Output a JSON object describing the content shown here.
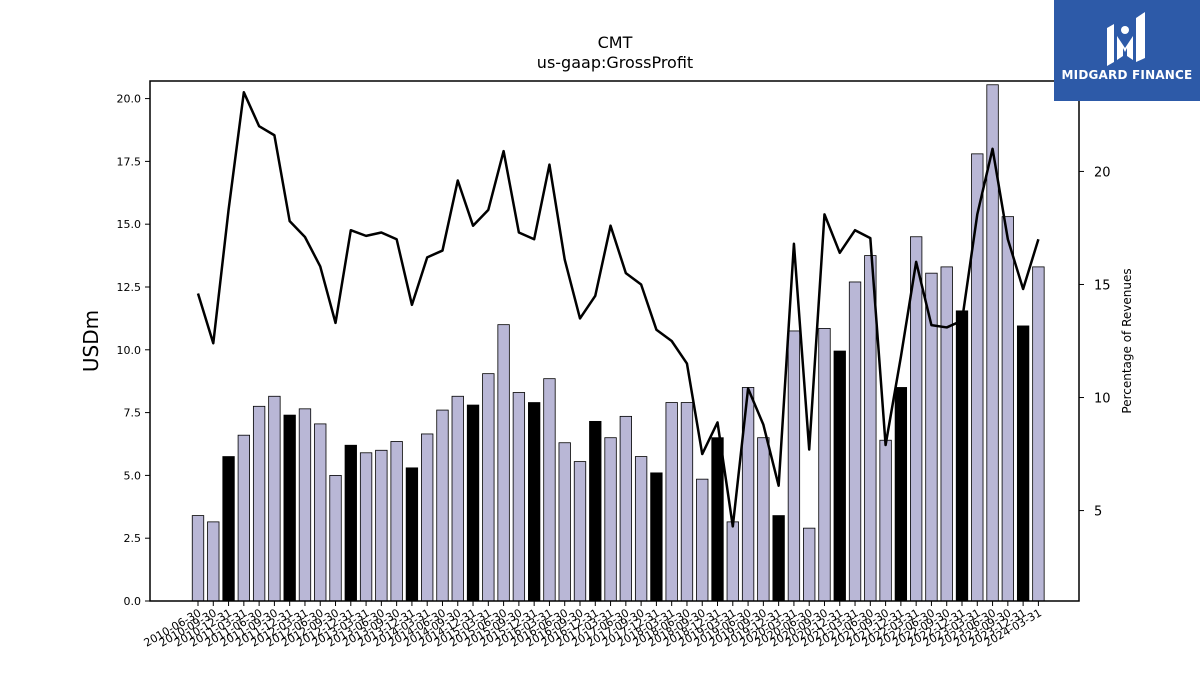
{
  "logo": {
    "text": "MIDGARD FINANCE"
  },
  "chart_data": {
    "type": "bar",
    "title": "CMT",
    "subtitle": "us-gaap:GrossProfit",
    "ylabel": "USDm",
    "y2label": "Percentage of Revenues",
    "ylim": [
      0,
      20.7
    ],
    "y2lim": [
      1,
      24
    ],
    "yticks": [
      "0.0",
      "2.5",
      "5.0",
      "7.5",
      "10.0",
      "12.5",
      "15.0",
      "17.5",
      "20.0"
    ],
    "y2ticks": [
      "5",
      "10",
      "15",
      "20"
    ],
    "categories": [
      "2010-06-30",
      "2010-09-30",
      "2010-12-31",
      "2011-03-31",
      "2011-06-30",
      "2011-09-30",
      "2011-12-31",
      "2012-03-31",
      "2012-06-30",
      "2012-09-30",
      "2012-12-31",
      "2013-03-31",
      "2013-06-30",
      "2013-09-30",
      "2013-12-31",
      "2014-03-31",
      "2014-06-30",
      "2014-09-30",
      "2014-12-31",
      "2015-03-31",
      "2015-06-30",
      "2015-09-30",
      "2015-12-31",
      "2016-03-31",
      "2016-06-30",
      "2016-09-30",
      "2016-12-31",
      "2017-03-31",
      "2017-06-30",
      "2017-09-30",
      "2017-12-31",
      "2018-03-31",
      "2018-06-30",
      "2018-09-30",
      "2018-12-31",
      "2019-03-31",
      "2019-06-30",
      "2019-09-30",
      "2019-12-31",
      "2020-03-31",
      "2020-06-30",
      "2020-09-30",
      "2020-12-31",
      "2021-03-31",
      "2021-06-30",
      "2021-09-30",
      "2021-12-31",
      "2022-03-31",
      "2022-06-30",
      "2022-09-30",
      "2022-12-31",
      "2023-03-31",
      "2023-06-30",
      "2023-09-30",
      "2023-12-31",
      "2024-03-31"
    ],
    "series": [
      {
        "type": "bar",
        "values": [
          3.4,
          3.15,
          5.75,
          6.6,
          7.75,
          8.15,
          7.4,
          7.65,
          7.05,
          5.0,
          6.2,
          5.9,
          6.0,
          6.35,
          5.3,
          6.65,
          7.6,
          8.15,
          7.8,
          9.05,
          11.0,
          8.3,
          7.9,
          8.85,
          6.3,
          5.55,
          7.15,
          6.5,
          7.35,
          5.75,
          5.1,
          7.9,
          7.9,
          4.85,
          6.5,
          3.15,
          8.5,
          6.5,
          3.4,
          10.75,
          2.9,
          10.85,
          9.95,
          12.7,
          13.75,
          6.4,
          8.5,
          14.5,
          13.05,
          13.3,
          11.55,
          17.8,
          20.55,
          15.3,
          10.95,
          13.3
        ],
        "fourth_quarter_color": "#000000",
        "color": "#b9b7d6"
      },
      {
        "type": "line",
        "axis": "right",
        "values": [
          14.6,
          12.4,
          18.3,
          23.5,
          22.0,
          21.6,
          17.8,
          17.1,
          15.8,
          13.3,
          17.4,
          17.15,
          17.3,
          17.0,
          14.1,
          16.2,
          16.5,
          19.6,
          17.6,
          18.3,
          20.9,
          17.3,
          17.0,
          20.3,
          16.1,
          13.5,
          14.5,
          17.6,
          15.5,
          15.0,
          13.0,
          12.5,
          11.5,
          7.5,
          8.9,
          4.3,
          10.4,
          8.8,
          6.1,
          16.8,
          7.7,
          18.1,
          16.4,
          17.4,
          17.05,
          7.9,
          11.8,
          16.0,
          13.2,
          13.1,
          13.4,
          18.1,
          21.0,
          17.0,
          14.8,
          17.0
        ],
        "color": "#000000"
      }
    ]
  }
}
